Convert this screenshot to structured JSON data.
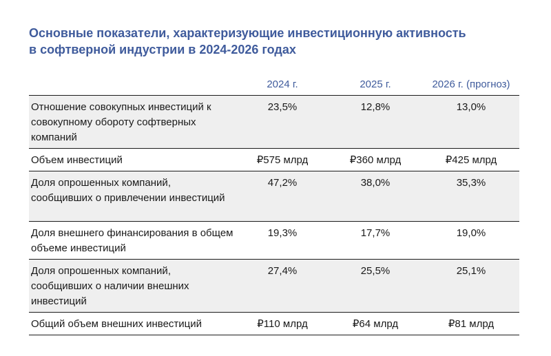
{
  "title": {
    "line1": "Основные показатели, характеризующие инвестиционную активность",
    "line2": "в софтверной индустрии в 2024-2026 годах"
  },
  "table": {
    "headers": [
      "",
      "2024 г.",
      "2025 г.",
      "2026 г. (прогноз)"
    ],
    "rows": [
      {
        "label": "Отношение совокупных инвестиций к совокупному обороту софтверных компаний",
        "values": [
          "23,5%",
          "12,8%",
          "13,0%"
        ]
      },
      {
        "label": "Объем инвестиций",
        "values": [
          "₽575 млрд",
          "₽360 млрд",
          "₽425 млрд"
        ]
      },
      {
        "label": "Доля опрошенных компаний, сообщивших о привлечении инвестиций",
        "values": [
          "47,2%",
          "38,0%",
          "35,3%"
        ]
      },
      {
        "label": "Доля внешнего финансирования в общем объеме инвестиций",
        "values": [
          "19,3%",
          "17,7%",
          "19,0%"
        ]
      },
      {
        "label": "Доля опрошенных компаний, сообщивших о наличии внешних инвестиций",
        "values": [
          "27,4%",
          "25,5%",
          "25,1%"
        ]
      },
      {
        "label": "Общий объем внешних инвестиций",
        "values": [
          "₽110 млрд",
          "₽64 млрд",
          "₽81 млрд"
        ]
      }
    ]
  },
  "colors": {
    "accent": "#3f5b9c",
    "row_shade": "#efefef",
    "rule": "#1a1a1a"
  }
}
